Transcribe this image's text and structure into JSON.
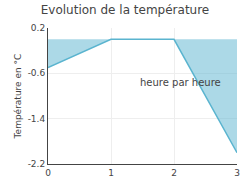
{
  "chart_data": {
    "type": "area",
    "title": "Evolution de la température",
    "ylabel": "Température en °C",
    "annotations": [
      "heure par heure"
    ],
    "x": [
      0,
      1,
      2,
      3
    ],
    "values": [
      -0.5,
      0.0,
      0.0,
      -2.0
    ],
    "color": "#5ab4cf",
    "xlim": [
      0,
      3
    ],
    "xticks": [
      0,
      1,
      2,
      3
    ],
    "ylim": [
      -2.2,
      0.2
    ],
    "yticks": [
      0.2,
      -0.6,
      -1.4,
      -2.2
    ],
    "grid": true
  }
}
